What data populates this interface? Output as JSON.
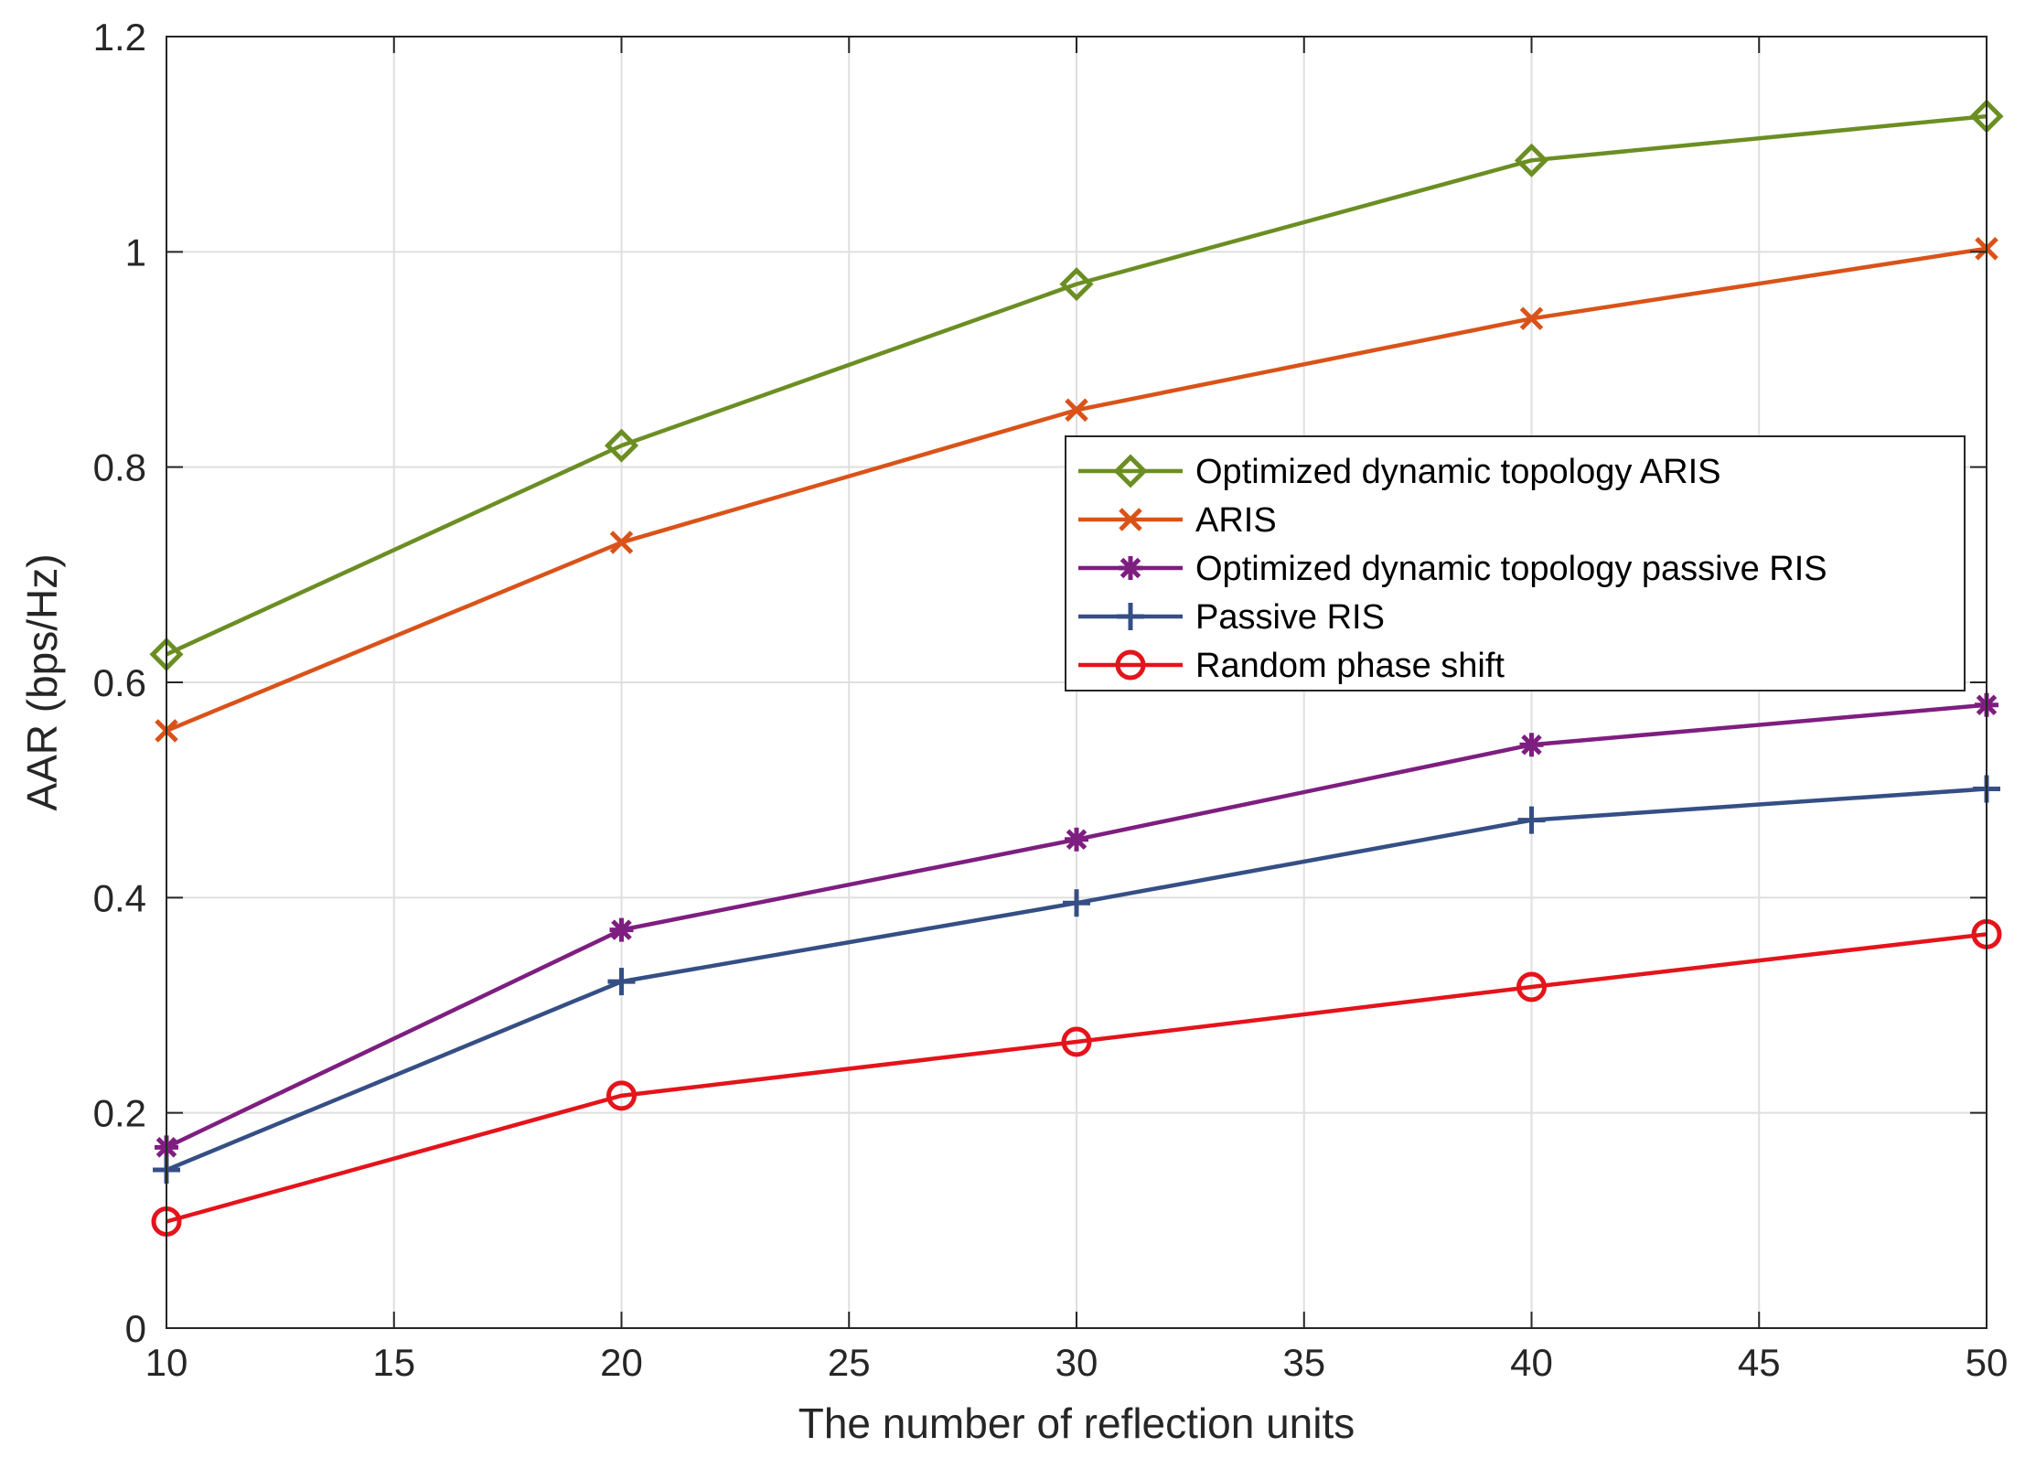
{
  "chart_data": {
    "type": "line",
    "title": "",
    "xlabel": "The number of reflection units",
    "ylabel": "AAR (bps/Hz)",
    "xlim": [
      10,
      50
    ],
    "ylim": [
      0,
      1.2
    ],
    "xticks": [
      "10",
      "15",
      "20",
      "25",
      "30",
      "35",
      "40",
      "45",
      "50"
    ],
    "yticks": [
      "0",
      "0.2",
      "0.4",
      "0.6",
      "0.8",
      "1",
      "1.2"
    ],
    "grid": true,
    "legend_position": "center-right",
    "x": [
      10,
      20,
      30,
      40,
      50
    ],
    "series": [
      {
        "name": "Optimized dynamic topology ARIS",
        "color": "#6b8e23",
        "marker": "diamond",
        "values": [
          0.626,
          0.82,
          0.97,
          1.085,
          1.126
        ]
      },
      {
        "name": "ARIS",
        "color": "#d95319",
        "marker": "x",
        "values": [
          0.555,
          0.73,
          0.853,
          0.938,
          1.003
        ]
      },
      {
        "name": "Optimized dynamic topology passive RIS",
        "color": "#7e1e80",
        "marker": "asterisk",
        "values": [
          0.168,
          0.37,
          0.454,
          0.542,
          0.579
        ]
      },
      {
        "name": "Passive RIS",
        "color": "#354f85",
        "marker": "plus",
        "values": [
          0.147,
          0.322,
          0.395,
          0.472,
          0.501
        ]
      },
      {
        "name": "Random phase shift",
        "color": "#e3141b",
        "marker": "circle",
        "values": [
          0.099,
          0.216,
          0.266,
          0.317,
          0.366
        ]
      }
    ]
  }
}
